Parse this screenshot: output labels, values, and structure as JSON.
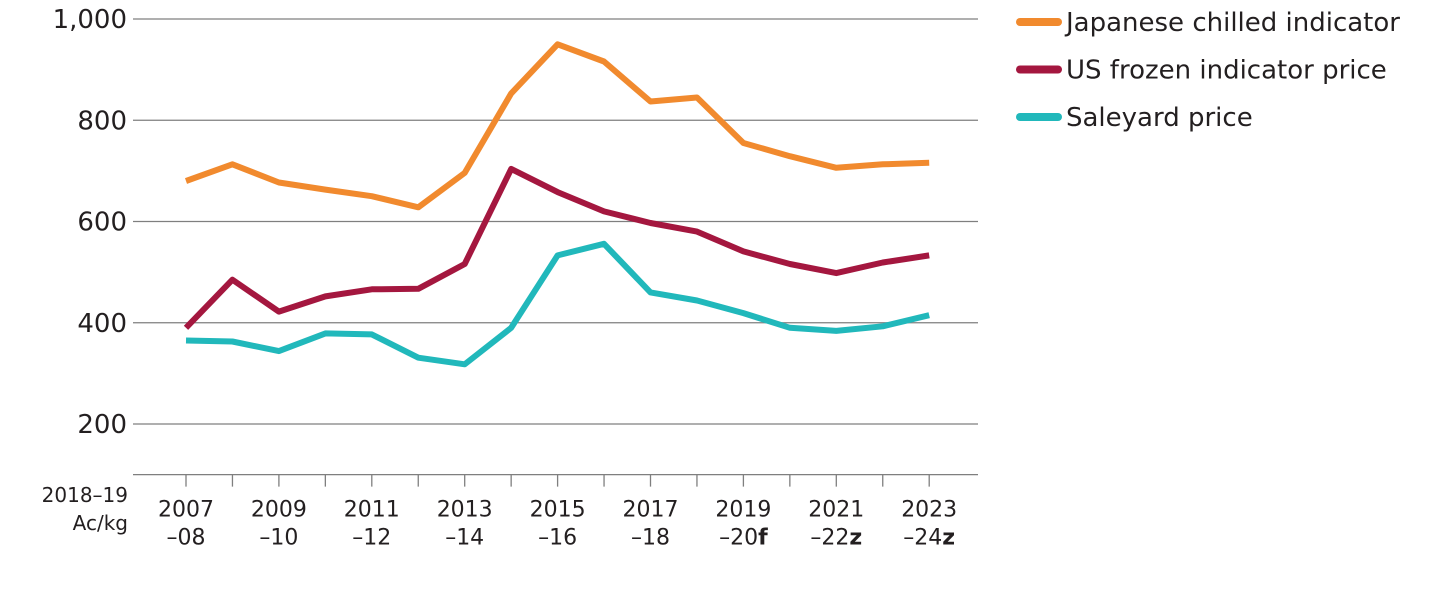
{
  "chart_data": {
    "type": "line",
    "title": "",
    "ylabel": "2018–19 Ac/kg",
    "ylabel_lines": [
      "2018–19",
      "Ac/kg"
    ],
    "xlabel": "",
    "ylim": [
      100,
      1000
    ],
    "yticks": [
      200,
      400,
      600,
      800,
      1000
    ],
    "ytick_labels": [
      "200",
      "400",
      "600",
      "800",
      "1,000"
    ],
    "grid": true,
    "legend_placement": "top-right",
    "categories": [
      "2007–08",
      "2008–09",
      "2009–10",
      "2010–11",
      "2011–12",
      "2012–13",
      "2013–14",
      "2014–15",
      "2015–16",
      "2016–17",
      "2017–18",
      "2018–19",
      "2019–20f",
      "2020–21",
      "2021–22z",
      "2022–23z",
      "2023–24z"
    ],
    "xtick_labels": [
      {
        "index": 0,
        "top": "2007",
        "bottom": "–08",
        "suffix": ""
      },
      {
        "index": 2,
        "top": "2009",
        "bottom": "–10",
        "suffix": ""
      },
      {
        "index": 4,
        "top": "2011",
        "bottom": "–12",
        "suffix": ""
      },
      {
        "index": 6,
        "top": "2013",
        "bottom": "–14",
        "suffix": ""
      },
      {
        "index": 8,
        "top": "2015",
        "bottom": "–16",
        "suffix": ""
      },
      {
        "index": 10,
        "top": "2017",
        "bottom": "–18",
        "suffix": ""
      },
      {
        "index": 12,
        "top": "2019",
        "bottom": "–20",
        "suffix": "f"
      },
      {
        "index": 14,
        "top": "2021",
        "bottom": "–22",
        "suffix": "z"
      },
      {
        "index": 16,
        "top": "2023",
        "bottom": "–24",
        "suffix": "z"
      }
    ],
    "series": [
      {
        "name": "Japanese chilled indicator",
        "color": "#f18a2e",
        "values": [
          680,
          713,
          677,
          663,
          650,
          628,
          696,
          853,
          950,
          916,
          837,
          845,
          755,
          729,
          706,
          713,
          716
        ]
      },
      {
        "name": "US frozen indicator price",
        "color": "#a4173f",
        "values": [
          390,
          485,
          422,
          452,
          466,
          467,
          516,
          704,
          658,
          620,
          597,
          580,
          541,
          516,
          498,
          519,
          533
        ]
      },
      {
        "name": "Saleyard price",
        "color": "#21b8bb",
        "values": [
          365,
          363,
          344,
          379,
          377,
          331,
          318,
          390,
          533,
          556,
          460,
          444,
          419,
          390,
          384,
          393,
          415
        ]
      }
    ]
  }
}
